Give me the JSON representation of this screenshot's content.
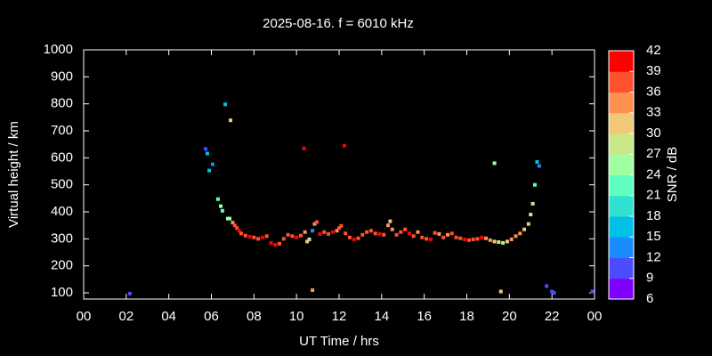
{
  "chart_data": {
    "type": "scatter",
    "title": "2025-08-16. f = 6010 kHz",
    "xlabel": "UT Time / hrs",
    "ylabel": "Virtual height / km",
    "colorbar_label": "SNR / dB",
    "xlim": [
      0,
      24
    ],
    "xticks": [
      {
        "value": 0,
        "label": "00"
      },
      {
        "value": 2,
        "label": "02"
      },
      {
        "value": 4,
        "label": "04"
      },
      {
        "value": 6,
        "label": "06"
      },
      {
        "value": 8,
        "label": "08"
      },
      10,
      12,
      14,
      16,
      18,
      20,
      22,
      {
        "value": 24,
        "label": "00"
      }
    ],
    "ylim": [
      77,
      1000
    ],
    "yticks": [
      100,
      200,
      300,
      400,
      500,
      600,
      700,
      800,
      900,
      1000
    ],
    "clim": [
      6,
      42
    ],
    "cticks": [
      6,
      9,
      12,
      15,
      18,
      21,
      24,
      27,
      30,
      33,
      36,
      39,
      42
    ],
    "colorscale": [
      "#8000ff",
      "#4c4cff",
      "#1a8cff",
      "#00c0e8",
      "#30e0d0",
      "#60ffc0",
      "#a0ffa0",
      "#c8e888",
      "#f0c878",
      "#ff9050",
      "#ff5030",
      "#ff0000"
    ],
    "x": [
      2.17,
      6.65,
      5.73,
      5.81,
      6.06,
      5.9,
      6.9,
      6.31,
      6.44,
      6.52,
      6.77,
      6.86,
      7.0,
      7.1,
      7.2,
      7.3,
      7.4,
      7.6,
      7.8,
      8.0,
      8.2,
      8.4,
      8.6,
      8.8,
      9.0,
      9.2,
      9.4,
      9.6,
      9.8,
      10.0,
      10.2,
      10.4,
      10.5,
      10.6,
      10.75,
      10.85,
      10.95,
      11.1,
      11.3,
      11.5,
      11.7,
      11.9,
      12.0,
      12.1,
      12.3,
      12.5,
      12.7,
      12.9,
      13.1,
      13.3,
      13.5,
      13.7,
      13.9,
      14.1,
      14.3,
      14.4,
      14.5,
      14.7,
      14.9,
      15.1,
      15.3,
      15.5,
      15.7,
      15.9,
      16.1,
      16.3,
      16.5,
      16.7,
      16.9,
      17.1,
      17.3,
      17.5,
      17.7,
      17.9,
      18.1,
      18.3,
      18.5,
      18.7,
      18.9,
      19.1,
      19.3,
      19.5,
      19.7,
      19.9,
      20.1,
      20.3,
      20.5,
      20.7,
      20.9,
      21.0,
      21.1,
      21.2,
      21.3,
      21.4,
      19.3,
      19.6,
      10.75,
      10.35,
      12.25,
      21.75,
      22.0,
      22.1,
      23.9
    ],
    "values": [
      97,
      798,
      633,
      616,
      576,
      553,
      739,
      447,
      421,
      404,
      375,
      375,
      360,
      350,
      340,
      330,
      320,
      312,
      308,
      305,
      300,
      305,
      310,
      285,
      278,
      282,
      300,
      315,
      310,
      305,
      312,
      325,
      290,
      298,
      330,
      355,
      362,
      318,
      325,
      318,
      325,
      330,
      340,
      348,
      320,
      305,
      298,
      302,
      315,
      325,
      330,
      320,
      318,
      315,
      350,
      365,
      335,
      315,
      325,
      335,
      320,
      310,
      325,
      305,
      300,
      298,
      322,
      318,
      305,
      315,
      320,
      305,
      302,
      298,
      295,
      298,
      300,
      305,
      302,
      295,
      290,
      288,
      285,
      290,
      298,
      310,
      320,
      335,
      355,
      390,
      430,
      500,
      585,
      570,
      580,
      105,
      110,
      635,
      645,
      125,
      105,
      100,
      105
    ],
    "snr": [
      10,
      17,
      11,
      17,
      12,
      17,
      31,
      22,
      24,
      22,
      25,
      26,
      35,
      36,
      38,
      39,
      38,
      38,
      39,
      38,
      38,
      39,
      38,
      39,
      39,
      38,
      37,
      36,
      38,
      39,
      36,
      33,
      31,
      28,
      12,
      35,
      37,
      39,
      37,
      38,
      39,
      35,
      36,
      38,
      37,
      38,
      39,
      38,
      37,
      36,
      37,
      38,
      39,
      36,
      33,
      31,
      35,
      38,
      37,
      38,
      39,
      36,
      34,
      37,
      38,
      39,
      36,
      34,
      38,
      33,
      36,
      37,
      38,
      39,
      36,
      37,
      38,
      39,
      35,
      34,
      31,
      28,
      24,
      30,
      33,
      34,
      33,
      31,
      30,
      28,
      29,
      21,
      15,
      14,
      25,
      30,
      33,
      39,
      40,
      10,
      10,
      10,
      10
    ]
  }
}
